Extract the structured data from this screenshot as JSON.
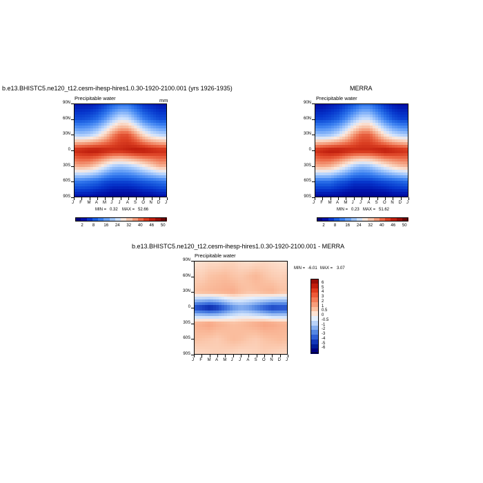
{
  "panels": [
    {
      "title": "b.e13.BHISTC5.ne120_t12.cesm-ihesp-hires1.0.30-1920-2100.001 (yrs 1926-1935)",
      "subtitle": "Precipitable water",
      "units": "mm",
      "min_label": "MIN =",
      "min": "0.32",
      "max_label": "MAX =",
      "max": "52.66"
    },
    {
      "title": "MERRA",
      "subtitle": "Precipitable water",
      "units": "",
      "min_label": "MIN =",
      "min": "0.23",
      "max_label": "MAX =",
      "max": "51.62"
    },
    {
      "title": "b.e13.BHISTC5.ne120_t12.cesm-ihesp-hires1.0.30-1920-2100.001 - MERRA",
      "subtitle": "Precipitable water",
      "units": "",
      "min_label": "MIN =",
      "min": "-6.01",
      "max_label": "MAX =",
      "max": "3.07"
    }
  ],
  "y_ticks": [
    "90N",
    "60N",
    "30N",
    "0",
    "30S",
    "60S",
    "90S"
  ],
  "x_ticks": [
    "J",
    "F",
    "M",
    "A",
    "M",
    "J",
    "J",
    "A",
    "S",
    "O",
    "N",
    "D",
    "J"
  ],
  "colorbar_abs": {
    "labels": [
      "2",
      "8",
      "16",
      "24",
      "32",
      "40",
      "46",
      "50"
    ],
    "colors": [
      "#00007f",
      "#0010a8",
      "#0636cc",
      "#1a5de0",
      "#3a7ff0",
      "#6aa2f7",
      "#9ec4fb",
      "#cfe2fd",
      "#fbe8dd",
      "#f8c7ae",
      "#f49d7c",
      "#ec6b49",
      "#db3f22",
      "#c01f0e",
      "#9a0f06",
      "#6e0000"
    ]
  },
  "colorbar_diff": {
    "labels": [
      "6",
      "5",
      "4",
      "3",
      "2",
      "1",
      "0.5",
      "0",
      "-0.5",
      "-1",
      "-2",
      "-3",
      "-4",
      "-5",
      "-6"
    ],
    "colors": [
      "#9a0f06",
      "#c21e0c",
      "#e03a1c",
      "#ee5a38",
      "#f47c58",
      "#f79d7a",
      "#fabfa0",
      "#fde3d3",
      "#e4effd",
      "#b8d2f8",
      "#86aff0",
      "#5487e4",
      "#2e5fd6",
      "#1236b8",
      "#001c97",
      "#00007f"
    ]
  },
  "chart_data": [
    {
      "type": "heatmap",
      "title": "b.e13.BHISTC5.ne120_t12.cesm-ihesp-hires1.0.30-1920-2100.001 (yrs 1926-1935)",
      "subtitle": "Precipitable water",
      "units": "mm",
      "x": [
        "J",
        "F",
        "M",
        "A",
        "M",
        "J",
        "J",
        "A",
        "S",
        "O",
        "N",
        "D",
        "J"
      ],
      "y": [
        90,
        60,
        30,
        0,
        -30,
        -60,
        -90
      ],
      "ylabels": [
        "90N",
        "60N",
        "30N",
        "0",
        "30S",
        "60S",
        "90S"
      ],
      "values": [
        [
          4,
          4,
          4,
          5,
          7,
          10,
          12,
          12,
          9,
          6,
          5,
          4,
          4
        ],
        [
          9,
          9,
          10,
          12,
          16,
          21,
          25,
          24,
          19,
          14,
          11,
          9,
          9
        ],
        [
          22,
          21,
          22,
          25,
          30,
          36,
          40,
          40,
          35,
          29,
          25,
          23,
          22
        ],
        [
          44,
          45,
          46,
          46,
          45,
          44,
          44,
          45,
          46,
          46,
          45,
          44,
          44
        ],
        [
          33,
          34,
          33,
          30,
          26,
          22,
          21,
          22,
          24,
          27,
          30,
          33,
          33
        ],
        [
          13,
          13,
          12,
          11,
          9,
          8,
          8,
          8,
          9,
          10,
          11,
          12,
          13
        ],
        [
          3,
          3,
          3,
          2,
          2,
          1,
          1,
          1,
          1,
          2,
          2,
          3,
          3
        ]
      ],
      "min": 0.32,
      "max": 52.66,
      "colorbar_levels": [
        2,
        8,
        16,
        24,
        32,
        40,
        46,
        50
      ]
    },
    {
      "type": "heatmap",
      "title": "MERRA",
      "subtitle": "Precipitable water",
      "x": [
        "J",
        "F",
        "M",
        "A",
        "M",
        "J",
        "J",
        "A",
        "S",
        "O",
        "N",
        "D",
        "J"
      ],
      "y": [
        90,
        60,
        30,
        0,
        -30,
        -60,
        -90
      ],
      "ylabels": [
        "90N",
        "60N",
        "30N",
        "0",
        "30S",
        "60S",
        "90S"
      ],
      "values": [
        [
          3,
          3,
          4,
          5,
          7,
          9,
          12,
          12,
          9,
          6,
          4,
          3,
          3
        ],
        [
          8,
          8,
          9,
          11,
          15,
          20,
          24,
          24,
          19,
          14,
          10,
          8,
          8
        ],
        [
          21,
          20,
          21,
          24,
          29,
          35,
          39,
          39,
          34,
          28,
          24,
          22,
          21
        ],
        [
          43,
          45,
          46,
          46,
          45,
          44,
          44,
          44,
          45,
          46,
          45,
          44,
          43
        ],
        [
          33,
          34,
          33,
          30,
          26,
          22,
          20,
          21,
          24,
          27,
          30,
          32,
          33
        ],
        [
          12,
          12,
          12,
          10,
          9,
          7,
          7,
          7,
          8,
          9,
          10,
          11,
          12
        ],
        [
          2,
          2,
          2,
          2,
          1,
          1,
          1,
          1,
          1,
          1,
          2,
          2,
          2
        ]
      ],
      "min": 0.23,
      "max": 51.62,
      "colorbar_levels": [
        2,
        8,
        16,
        24,
        32,
        40,
        46,
        50
      ]
    },
    {
      "type": "heatmap",
      "title": "b.e13.BHISTC5.ne120_t12.cesm-ihesp-hires1.0.30-1920-2100.001 - MERRA",
      "subtitle": "Precipitable water",
      "x": [
        "J",
        "F",
        "M",
        "A",
        "M",
        "J",
        "J",
        "A",
        "S",
        "O",
        "N",
        "D",
        "J"
      ],
      "y": [
        90,
        60,
        30,
        0,
        -30,
        -60,
        -90
      ],
      "ylabels": [
        "90N",
        "60N",
        "30N",
        "0",
        "30S",
        "60S",
        "90S"
      ],
      "values": [
        [
          0.4,
          0.5,
          0.6,
          0.6,
          0.7,
          0.8,
          0.6,
          0.5,
          0.6,
          0.7,
          0.6,
          0.5,
          0.4
        ],
        [
          1.0,
          0.9,
          1.2,
          1.3,
          1.4,
          1.2,
          1.1,
          1.3,
          1.5,
          1.2,
          1.0,
          0.9,
          1.0
        ],
        [
          1.2,
          1.4,
          1.5,
          1.6,
          1.7,
          1.8,
          1.4,
          1.2,
          1.3,
          1.5,
          1.6,
          1.3,
          1.2
        ],
        [
          -4.5,
          -5.0,
          -5.5,
          -5.0,
          -4.0,
          -3.0,
          -2.5,
          -2.8,
          -3.5,
          -4.2,
          -4.8,
          -4.6,
          -4.5
        ],
        [
          1.6,
          1.8,
          2.0,
          1.7,
          1.5,
          1.3,
          1.4,
          1.6,
          1.8,
          2.0,
          1.9,
          1.7,
          1.6
        ],
        [
          1.3,
          1.2,
          1.1,
          1.0,
          1.2,
          1.4,
          1.3,
          1.1,
          1.0,
          1.2,
          1.3,
          1.4,
          1.3
        ],
        [
          0.6,
          0.7,
          0.8,
          0.9,
          0.8,
          0.7,
          0.6,
          0.7,
          0.8,
          0.9,
          0.8,
          0.7,
          0.6
        ]
      ],
      "min": -6.01,
      "max": 3.07,
      "colorbar_levels": [
        6,
        5,
        4,
        3,
        2,
        1,
        0.5,
        0,
        -0.5,
        -1,
        -2,
        -3,
        -4,
        -5,
        -6
      ]
    }
  ]
}
